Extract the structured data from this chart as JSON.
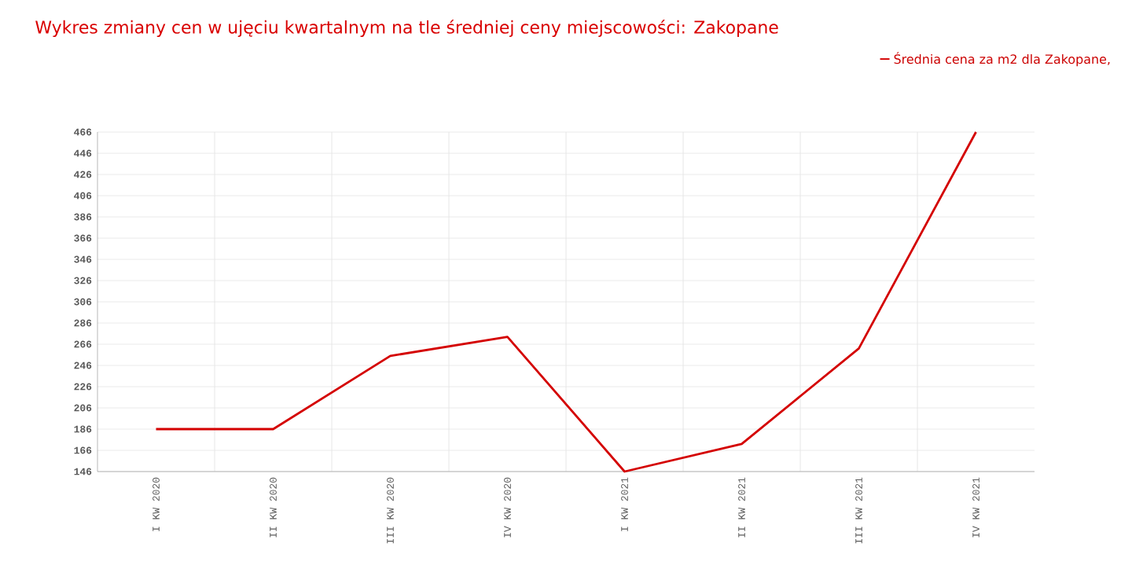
{
  "chart_data": {
    "type": "line",
    "title": "Wykres zmiany cen w ujęciu kwartalnym na tle średniej ceny miejscowości: Zakopane",
    "categories": [
      "I KW 2020",
      "II KW 2020",
      "III KW 2020",
      "IV KW 2020",
      "I KW 2021",
      "II KW 2021",
      "III KW 2021",
      "IV KW 2021"
    ],
    "series": [
      {
        "name": "Średnia cena za m2 dla Zakopane,",
        "color": "#d40000",
        "values": [
          186,
          186,
          255,
          273,
          146,
          172,
          262,
          466
        ]
      }
    ],
    "ylim": [
      146,
      466
    ],
    "yticks": [
      146,
      166,
      186,
      206,
      226,
      246,
      266,
      286,
      306,
      326,
      346,
      366,
      386,
      406,
      426,
      446,
      466
    ],
    "grid": true,
    "legend": "top right",
    "marker": "none",
    "line_style": "solid"
  }
}
